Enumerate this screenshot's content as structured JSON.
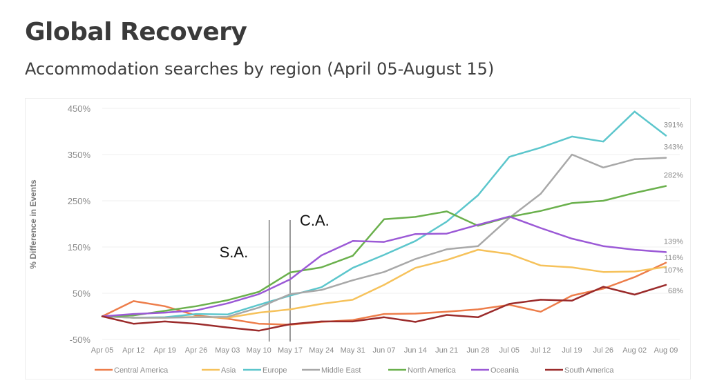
{
  "title": "Global Recovery",
  "subtitle": "Accommodation searches by region (April 05-August 15)",
  "chart_data": {
    "type": "line",
    "ylabel": "% Difference in Events",
    "xlabel": "",
    "ylim": [
      -50,
      450
    ],
    "yticks": [
      -50,
      50,
      150,
      250,
      350,
      450
    ],
    "ytick_labels": [
      "-50%",
      "50%",
      "150%",
      "250%",
      "350%",
      "450%"
    ],
    "grid": true,
    "legend_position": "bottom",
    "categories": [
      "Apr 05",
      "Apr 12",
      "Apr 19",
      "Apr 26",
      "May 03",
      "May 10",
      "May 17",
      "May 24",
      "May 31",
      "Jun 07",
      "Jun 14",
      "Jun 21",
      "Jun 28",
      "Jul 05",
      "Jul 12",
      "Jul 19",
      "Jul 26",
      "Aug 02",
      "Aug 09"
    ],
    "series": [
      {
        "name": "Central America",
        "color": "#ed7d4a",
        "values": [
          0,
          33,
          22,
          2,
          -5,
          -16,
          -18,
          -12,
          -8,
          5,
          6,
          10,
          15,
          25,
          10,
          45,
          60,
          85,
          116
        ]
      },
      {
        "name": "Asia",
        "color": "#f6c25b",
        "values": [
          0,
          -3,
          -3,
          -1,
          -3,
          8,
          15,
          27,
          36,
          68,
          105,
          122,
          144,
          135,
          110,
          106,
          96,
          97,
          107
        ]
      },
      {
        "name": "Europe",
        "color": "#5cc6cc",
        "values": [
          0,
          -3,
          -2,
          5,
          4,
          25,
          45,
          63,
          105,
          133,
          163,
          205,
          262,
          345,
          365,
          389,
          378,
          443,
          391
        ]
      },
      {
        "name": "Middle East",
        "color": "#a8a8a8",
        "values": [
          0,
          -3,
          -3,
          -2,
          -1,
          19,
          48,
          57,
          78,
          96,
          124,
          145,
          152,
          213,
          265,
          350,
          322,
          340,
          343
        ]
      },
      {
        "name": "North America",
        "color": "#6ab04c",
        "values": [
          0,
          2,
          12,
          22,
          35,
          53,
          95,
          106,
          131,
          210,
          215,
          227,
          196,
          215,
          228,
          245,
          250,
          267,
          282
        ]
      },
      {
        "name": "Oceania",
        "color": "#9b59d6",
        "values": [
          0,
          5,
          8,
          13,
          28,
          48,
          80,
          132,
          163,
          161,
          178,
          179,
          198,
          216,
          191,
          168,
          152,
          144,
          139
        ]
      },
      {
        "name": "South America",
        "color": "#9b2b2b",
        "values": [
          0,
          -16,
          -11,
          -16,
          -24,
          -31,
          -17,
          -11,
          -11,
          -2,
          -12,
          3,
          -2,
          27,
          36,
          34,
          64,
          47,
          68
        ]
      }
    ],
    "end_labels": [
      {
        "text": "391%",
        "value": 391
      },
      {
        "text": "343%",
        "value": 343
      },
      {
        "text": "282%",
        "value": 282
      },
      {
        "text": "139%",
        "value": 139
      },
      {
        "text": "116%",
        "value": 116
      },
      {
        "text": "107%",
        "value": 107
      },
      {
        "text": "68%",
        "value": 68
      }
    ],
    "annotations": [
      {
        "text": "S.A.",
        "category_index": 5.33
      },
      {
        "text": "C.A.",
        "category_index": 6.0
      }
    ]
  }
}
